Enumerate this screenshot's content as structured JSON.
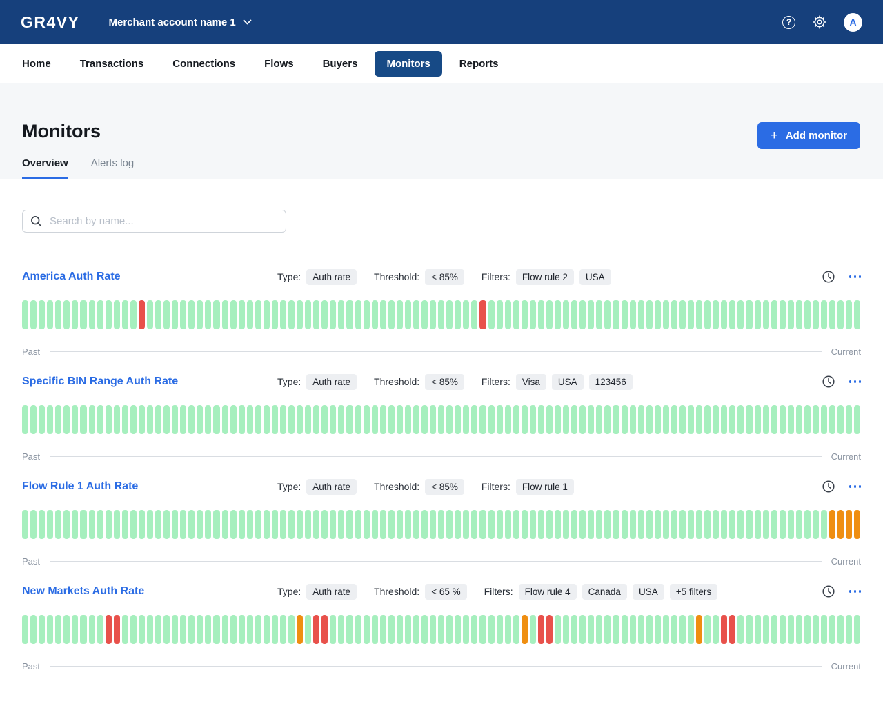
{
  "topbar": {
    "logo": "GR4VY",
    "merchant_name": "Merchant account name 1",
    "help_glyph": "?",
    "avatar_initial": "A"
  },
  "nav": {
    "items": [
      {
        "label": "Home",
        "active": false
      },
      {
        "label": "Transactions",
        "active": false
      },
      {
        "label": "Connections",
        "active": false
      },
      {
        "label": "Flows",
        "active": false
      },
      {
        "label": "Buyers",
        "active": false
      },
      {
        "label": "Monitors",
        "active": true
      },
      {
        "label": "Reports",
        "active": false
      }
    ]
  },
  "page": {
    "title": "Monitors",
    "add_button_label": "Add monitor",
    "add_button_plus": "+",
    "tabs": [
      {
        "label": "Overview",
        "active": true
      },
      {
        "label": "Alerts log",
        "active": false
      }
    ]
  },
  "search": {
    "placeholder": "Search by name...",
    "value": ""
  },
  "labels": {
    "type": "Type:",
    "threshold": "Threshold:",
    "filters": "Filters:",
    "past": "Past",
    "current": "Current"
  },
  "colors": {
    "header_blue": "#16407c",
    "accent_blue": "#2b6ce4",
    "status": {
      "ok": "#a6efbe",
      "alert": "#e8514b",
      "warning": "#ef8e11"
    }
  },
  "monitors": [
    {
      "title": "America Auth Rate",
      "type_value": "Auth rate",
      "threshold_value": "< 85%",
      "filters": [
        "Flow rule 2",
        "USA"
      ],
      "chart": {
        "type": "bar",
        "bar_count": 101,
        "default_status": "ok",
        "highlights": {
          "14": "alert",
          "55": "alert"
        }
      }
    },
    {
      "title": "Specific BIN Range Auth Rate",
      "type_value": "Auth rate",
      "threshold_value": "< 85%",
      "filters": [
        "Visa",
        "USA",
        "123456"
      ],
      "chart": {
        "type": "bar",
        "bar_count": 101,
        "default_status": "ok",
        "highlights": {}
      }
    },
    {
      "title": "Flow Rule 1 Auth Rate",
      "type_value": "Auth rate",
      "threshold_value": "< 85%",
      "filters": [
        "Flow rule 1"
      ],
      "chart": {
        "type": "bar",
        "bar_count": 101,
        "default_status": "ok",
        "highlights": {
          "97": "warning",
          "98": "warning",
          "99": "warning",
          "100": "warning"
        }
      }
    },
    {
      "title": "New Markets Auth Rate",
      "type_value": "Auth rate",
      "threshold_value": "< 65 %",
      "filters": [
        "Flow rule 4",
        "Canada",
        "USA",
        "+5 filters"
      ],
      "chart": {
        "type": "bar",
        "bar_count": 101,
        "default_status": "ok",
        "highlights": {
          "10": "alert",
          "11": "alert",
          "33": "warning",
          "35": "alert",
          "36": "alert",
          "60": "warning",
          "62": "alert",
          "63": "alert",
          "81": "warning",
          "84": "alert",
          "85": "alert"
        }
      }
    }
  ]
}
